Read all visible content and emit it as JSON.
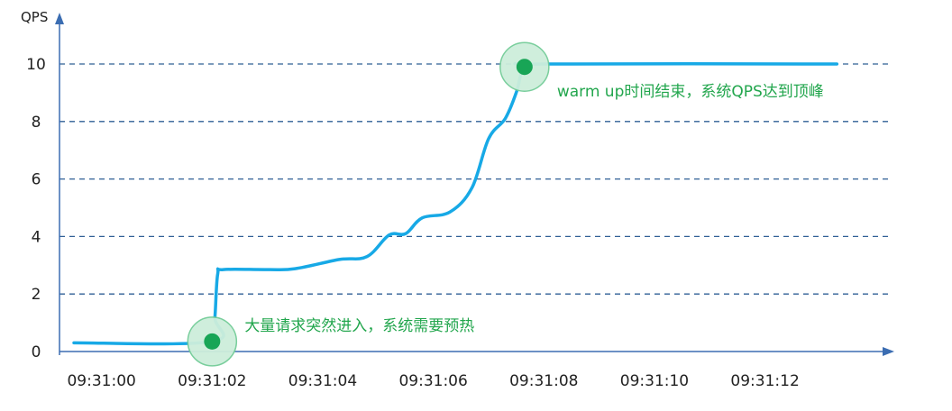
{
  "chart_data": {
    "type": "line",
    "title": "",
    "xlabel": "",
    "ylabel": "QPS",
    "ylim": [
      0,
      11.2
    ],
    "xlim": [
      "09:31:00",
      "09:31:14"
    ],
    "xlim_seconds": [
      -0.5,
      13.8
    ],
    "x_ticks": [
      "09:31:00",
      "09:31:02",
      "09:31:04",
      "09:31:06",
      "09:31:08",
      "09:31:10",
      "09:31:12"
    ],
    "x_tick_seconds": [
      0,
      2,
      4,
      6,
      8,
      10,
      12
    ],
    "y_ticks": [
      0,
      2,
      4,
      6,
      8,
      10
    ],
    "grid": {
      "y": true,
      "x": false
    },
    "legend": "none",
    "series": [
      {
        "color": "#17a9e6",
        "points": [
          {
            "x": -0.5,
            "y": 0.3
          },
          {
            "x": 2.0,
            "y": 0.35
          },
          {
            "x": 2.05,
            "y": 1.2
          },
          {
            "x": 2.1,
            "y": 2.7
          },
          {
            "x": 2.2,
            "y": 2.85
          },
          {
            "x": 3.0,
            "y": 2.85
          },
          {
            "x": 3.5,
            "y": 2.88
          },
          {
            "x": 4.3,
            "y": 3.2
          },
          {
            "x": 4.8,
            "y": 3.3
          },
          {
            "x": 5.2,
            "y": 4.05
          },
          {
            "x": 5.5,
            "y": 4.1
          },
          {
            "x": 5.8,
            "y": 4.65
          },
          {
            "x": 6.3,
            "y": 4.85
          },
          {
            "x": 6.7,
            "y": 5.7
          },
          {
            "x": 7.0,
            "y": 7.4
          },
          {
            "x": 7.3,
            "y": 8.1
          },
          {
            "x": 7.5,
            "y": 9.0
          },
          {
            "x": 7.65,
            "y": 9.9
          },
          {
            "x": 8.0,
            "y": 10.0
          },
          {
            "x": 13.3,
            "y": 10.0
          }
        ]
      }
    ],
    "annotations": [
      {
        "text": "大量请求突然进入，系统需要预热",
        "x": 2.0,
        "y": 0.35
      },
      {
        "text": "warm up时间结束，系统QPS达到顶峰",
        "x": 7.65,
        "y": 9.9
      }
    ]
  }
}
